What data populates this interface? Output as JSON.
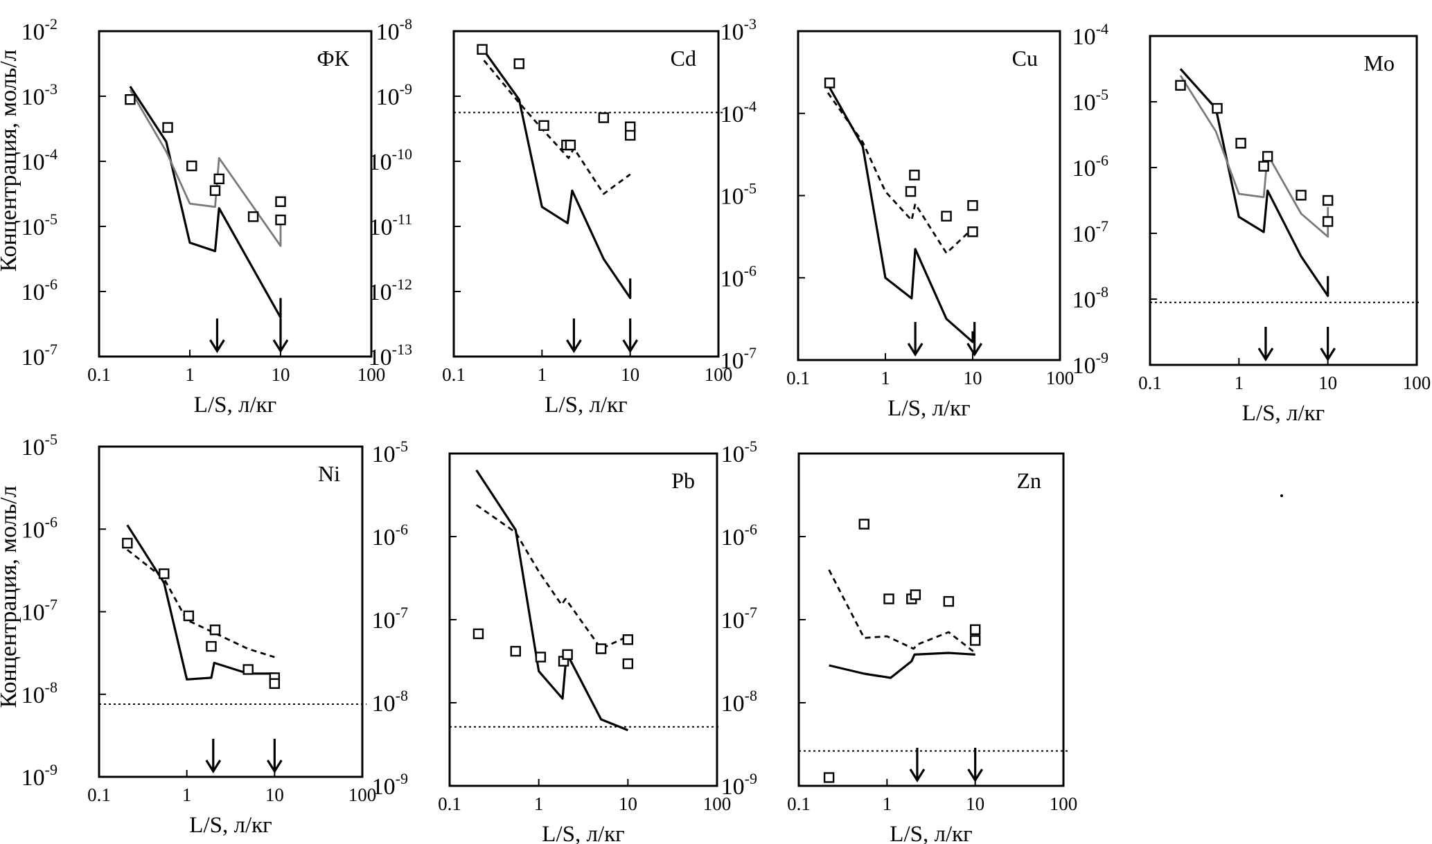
{
  "y_axis_label": "Концентрация, моль/л",
  "x_axis_label": "L/S, л/кг",
  "x_tick_labels": [
    "0.1",
    "1",
    "10",
    "100"
  ],
  "chart_data": [
    {
      "type": "scatter",
      "title": "ФК",
      "xlabel": "L/S, л/кг",
      "ylabel": "Концентрация, моль/л",
      "x_scale": "log",
      "y_scale": "log",
      "xlim": [
        0.1,
        100
      ],
      "ylim_exp": [
        -7,
        -2
      ],
      "y_tick_exponents": [
        "-2",
        "-3",
        "-4",
        "-5",
        "-6",
        "-7"
      ],
      "series": [
        {
          "style": "solid-black",
          "x": [
            0.22,
            0.55,
            1,
            1.9,
            2.1,
            10,
            10
          ],
          "y_log10": [
            -2.85,
            -3.7,
            -5.25,
            -5.38,
            -4.72,
            -6.4,
            -6.1
          ]
        },
        {
          "style": "solid-gray",
          "x": [
            0.22,
            0.55,
            1,
            1.9,
            2.1,
            10,
            10
          ],
          "y_log10": [
            -2.9,
            -3.85,
            -4.65,
            -4.7,
            -3.95,
            -5.3,
            -4.85
          ]
        },
        {
          "style": "markers",
          "x": [
            0.22,
            0.57,
            1.05,
            1.9,
            2.1,
            5,
            10,
            10
          ],
          "y_log10": [
            -3.05,
            -3.48,
            -4.07,
            -4.45,
            -4.27,
            -4.85,
            -4.62,
            -4.9
          ]
        }
      ],
      "arrows_x": [
        2,
        10
      ]
    },
    {
      "type": "scatter",
      "title": "Cd",
      "xlabel": "L/S, л/кг",
      "ylabel": "Концентрация, моль/л",
      "x_scale": "log",
      "y_scale": "log",
      "xlim": [
        0.1,
        100
      ],
      "ylim_exp": [
        -13,
        -8
      ],
      "y_tick_exponents": [
        "-8",
        "-9",
        "-10",
        "-11",
        "-12",
        "-13"
      ],
      "horizontal_reference_log10": -9.25,
      "series": [
        {
          "style": "solid-black",
          "x": [
            0.22,
            0.55,
            1,
            1.95,
            2.2,
            5,
            10,
            10
          ],
          "y_log10": [
            -8.3,
            -9.05,
            -10.7,
            -10.95,
            -10.45,
            -11.5,
            -12.1,
            -11.8
          ]
        },
        {
          "style": "dashed-black",
          "x": [
            0.22,
            0.55,
            1,
            2,
            2.3,
            5,
            10
          ],
          "y_log10": [
            -8.45,
            -9.1,
            -9.5,
            -9.95,
            -9.8,
            -10.5,
            -10.2
          ]
        },
        {
          "style": "markers",
          "x": [
            0.21,
            0.55,
            1.05,
            1.9,
            2.1,
            5,
            10,
            10
          ],
          "y_log10": [
            -8.28,
            -8.5,
            -9.45,
            -9.75,
            -9.75,
            -9.33,
            -9.47,
            -9.6
          ]
        }
      ],
      "arrows_x": [
        2.3,
        10
      ]
    },
    {
      "type": "scatter",
      "title": "Cu",
      "xlabel": "L/S, л/кг",
      "ylabel": "Концентрация, моль/л",
      "x_scale": "log",
      "y_scale": "log",
      "xlim": [
        0.1,
        100
      ],
      "ylim_exp": [
        -7,
        -3
      ],
      "y_tick_exponents": [
        "-3",
        "-4",
        "-5",
        "-6",
        "-7"
      ],
      "series": [
        {
          "style": "solid-black",
          "x": [
            0.22,
            0.55,
            1,
            2,
            2.2,
            5,
            10,
            10
          ],
          "y_log10": [
            -3.65,
            -4.4,
            -6,
            -6.25,
            -5.65,
            -6.5,
            -6.78,
            -6.65
          ]
        },
        {
          "style": "dashed-black",
          "x": [
            0.22,
            0.55,
            1,
            2,
            2.2,
            5,
            10
          ],
          "y_log10": [
            -3.75,
            -4.35,
            -4.95,
            -5.3,
            -5.1,
            -5.7,
            -5.4
          ]
        },
        {
          "style": "markers",
          "x": [
            0.23,
            1.95,
            2.15,
            5,
            10,
            10
          ],
          "y_log10": [
            -3.63,
            -4.95,
            -4.75,
            -5.25,
            -5.12,
            -5.44
          ]
        }
      ],
      "arrows_x": [
        2.2,
        10.5
      ]
    },
    {
      "type": "scatter",
      "title": "Mo",
      "xlabel": "L/S, л/кг",
      "ylabel": "Концентрация, моль/л",
      "x_scale": "log",
      "y_scale": "log",
      "xlim": [
        0.1,
        100
      ],
      "ylim_exp": [
        -9,
        -4
      ],
      "y_tick_exponents": [
        "-4",
        "-5",
        "-6",
        "-7",
        "-8",
        "-9"
      ],
      "horizontal_reference_log10": -8.05,
      "series": [
        {
          "style": "solid-black",
          "x": [
            0.22,
            0.55,
            1,
            1.9,
            2.1,
            5,
            10,
            10
          ],
          "y_log10": [
            -4.5,
            -5.1,
            -6.75,
            -6.98,
            -6.35,
            -7.35,
            -7.95,
            -7.65
          ]
        },
        {
          "style": "solid-gray",
          "x": [
            0.22,
            0.55,
            1,
            1.9,
            2.1,
            5,
            10,
            10
          ],
          "y_log10": [
            -4.6,
            -5.45,
            -6.4,
            -6.45,
            -5.8,
            -6.7,
            -7.05,
            -6.6
          ]
        },
        {
          "style": "markers",
          "x": [
            0.22,
            0.57,
            1.05,
            1.9,
            2.1,
            5,
            10,
            10
          ],
          "y_log10": [
            -4.75,
            -5.1,
            -5.63,
            -5.98,
            -5.83,
            -6.42,
            -6.5,
            -6.82
          ]
        }
      ],
      "arrows_x": [
        2,
        10
      ]
    },
    {
      "type": "scatter",
      "title": "Ni",
      "xlabel": "L/S, л/кг",
      "ylabel": "Концентрация, моль/л",
      "x_scale": "log",
      "y_scale": "log",
      "xlim": [
        0.1,
        100
      ],
      "ylim_exp": [
        -9,
        -5
      ],
      "y_tick_exponents": [
        "-5",
        "-6",
        "-7",
        "-8",
        "-9"
      ],
      "horizontal_reference_log10": -8.12,
      "series": [
        {
          "style": "solid-black",
          "x": [
            0.21,
            0.55,
            1,
            1.9,
            2.05,
            5,
            10,
            10
          ],
          "y_log10": [
            -5.95,
            -6.65,
            -7.82,
            -7.8,
            -7.62,
            -7.75,
            -7.75,
            -7.85
          ]
        },
        {
          "style": "dashed-black",
          "x": [
            0.21,
            0.55,
            1,
            2,
            5,
            10
          ],
          "y_log10": [
            -6.25,
            -6.6,
            -7.1,
            -7.25,
            -7.45,
            -7.55
          ]
        },
        {
          "style": "markers",
          "x": [
            0.21,
            0.55,
            1.05,
            1.9,
            2.1,
            5,
            10,
            10
          ],
          "y_log10": [
            -6.17,
            -6.54,
            -7.05,
            -7.42,
            -7.22,
            -7.7,
            -7.8,
            -7.87
          ]
        }
      ],
      "arrows_x": [
        2,
        10
      ]
    },
    {
      "type": "scatter",
      "title": "Pb",
      "xlabel": "L/S, л/кг",
      "ylabel": "Концентрация, моль/л",
      "x_scale": "log",
      "y_scale": "log",
      "xlim": [
        0.1,
        100
      ],
      "ylim_exp": [
        -9,
        -5
      ],
      "y_tick_exponents": [
        "-5",
        "-6",
        "-7",
        "-8",
        "-9"
      ],
      "horizontal_reference_log10": -8.29,
      "series": [
        {
          "style": "solid-black",
          "x": [
            0.2,
            0.55,
            1,
            1.85,
            2.05,
            5,
            10
          ],
          "y_log10": [
            -5.2,
            -5.92,
            -7.62,
            -7.95,
            -7.4,
            -8.2,
            -8.33
          ]
        },
        {
          "style": "dashed-black",
          "x": [
            0.2,
            0.55,
            1,
            1.8,
            2,
            5,
            10
          ],
          "y_log10": [
            -5.62,
            -5.95,
            -6.42,
            -6.82,
            -6.75,
            -7.35,
            -7.2
          ]
        },
        {
          "style": "markers",
          "x": [
            0.21,
            0.55,
            1.05,
            1.9,
            2.1,
            5,
            10,
            10
          ],
          "y_log10": [
            -7.17,
            -7.38,
            -7.45,
            -7.5,
            -7.42,
            -7.35,
            -7.24,
            -7.53
          ]
        }
      ],
      "arrows_x": []
    },
    {
      "type": "scatter",
      "title": "Zn",
      "xlabel": "L/S, л/кг",
      "ylabel": "Концентрация, моль/л",
      "x_scale": "log",
      "y_scale": "log",
      "xlim": [
        0.1,
        100
      ],
      "ylim_exp": [
        -9,
        -5
      ],
      "y_tick_exponents": [
        "-5",
        "-6",
        "-7",
        "-8",
        "-9"
      ],
      "horizontal_reference_log10": -8.58,
      "series": [
        {
          "style": "solid-black",
          "x": [
            0.22,
            0.55,
            1.1,
            1.9,
            2.05,
            5,
            10
          ],
          "y_log10": [
            -7.55,
            -7.65,
            -7.7,
            -7.5,
            -7.42,
            -7.4,
            -7.42
          ]
        },
        {
          "style": "dashed-black",
          "x": [
            0.22,
            0.55,
            1,
            2,
            2.2,
            5,
            10
          ],
          "y_log10": [
            -6.4,
            -7.22,
            -7.2,
            -7.35,
            -7.3,
            -7.15,
            -7.4
          ]
        },
        {
          "style": "markers",
          "x": [
            0.22,
            0.55,
            1.05,
            1.9,
            2.1,
            5,
            10,
            10
          ],
          "y_log10": [
            -8.9,
            -5.85,
            -6.75,
            -6.75,
            -6.7,
            -6.78,
            -7.12,
            -7.25
          ]
        }
      ],
      "arrows_x": [
        2.2,
        10
      ]
    }
  ]
}
